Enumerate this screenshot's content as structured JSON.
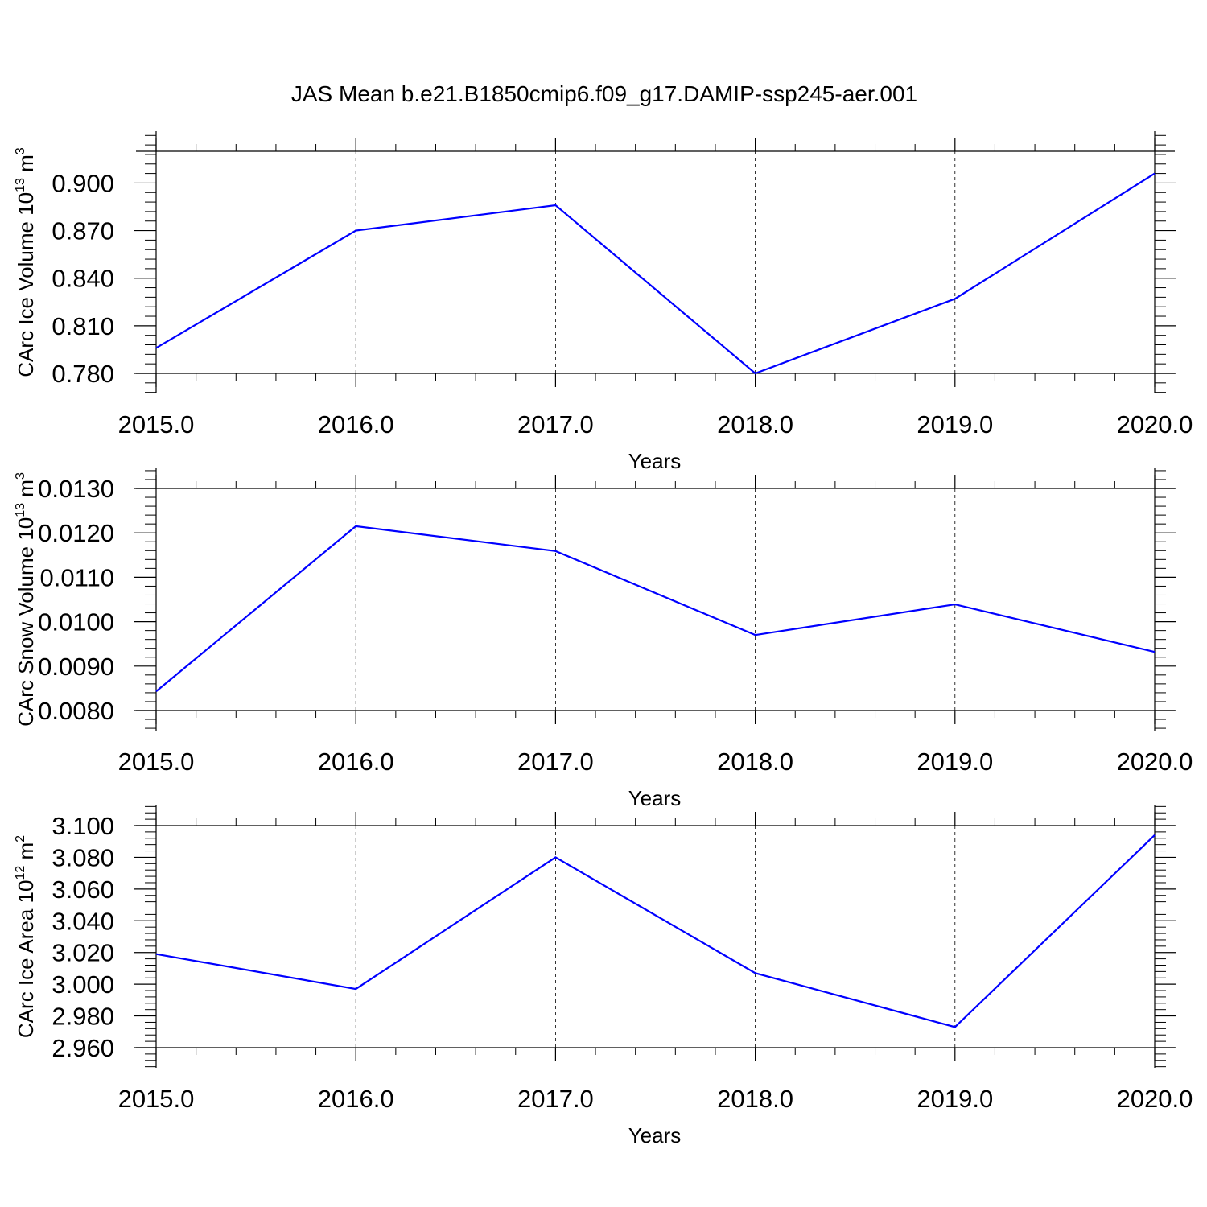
{
  "title": "JAS Mean b.e21.B1850cmip6.f09_g17.DAMIP-ssp245-aer.001",
  "colors": {
    "line": "#0000ff",
    "axes": "#000000",
    "grid": "#000000"
  },
  "chart_data": [
    {
      "type": "line",
      "xlabel": "Years",
      "ylabel": {
        "text": "CArc Ice Volume 10",
        "exponent": "13",
        "unit": " m",
        "unit_exponent": "3"
      },
      "x": [
        2015,
        2016,
        2017,
        2018,
        2019,
        2020
      ],
      "x_tick_labels": [
        "2015.0",
        "2016.0",
        "2017.0",
        "2018.0",
        "2019.0",
        "2020.0"
      ],
      "y": [
        0.796,
        0.87,
        0.886,
        0.78,
        0.827,
        0.906
      ],
      "ylim": [
        0.78,
        0.92
      ],
      "y_ticks": [
        0.78,
        0.81,
        0.84,
        0.87,
        0.9
      ],
      "y_tick_labels": [
        "0.780",
        "0.810",
        "0.840",
        "0.870",
        "0.900"
      ],
      "y_minor_step": 0.006,
      "grid": "vertical dashed at major x ticks"
    },
    {
      "type": "line",
      "xlabel": "Years",
      "ylabel": {
        "text": "CArc Snow Volume 10",
        "exponent": "13",
        "unit": " m",
        "unit_exponent": "3"
      },
      "x": [
        2015,
        2016,
        2017,
        2018,
        2019,
        2020
      ],
      "x_tick_labels": [
        "2015.0",
        "2016.0",
        "2017.0",
        "2018.0",
        "2019.0",
        "2020.0"
      ],
      "y": [
        0.00843,
        0.01215,
        0.01159,
        0.0097,
        0.01039,
        0.00932
      ],
      "ylim": [
        0.008,
        0.013
      ],
      "y_ticks": [
        0.008,
        0.009,
        0.01,
        0.011,
        0.012,
        0.013
      ],
      "y_tick_labels": [
        "0.0080",
        "0.0090",
        "0.0100",
        "0.0110",
        "0.0120",
        "0.0130"
      ],
      "y_minor_step": 0.0002,
      "grid": "vertical dashed at major x ticks"
    },
    {
      "type": "line",
      "xlabel": "Years",
      "ylabel": {
        "text": "CArc Ice Area 10",
        "exponent": "12",
        "unit": " m",
        "unit_exponent": "2"
      },
      "x": [
        2015,
        2016,
        2017,
        2018,
        2019,
        2020
      ],
      "x_tick_labels": [
        "2015.0",
        "2016.0",
        "2017.0",
        "2018.0",
        "2019.0",
        "2020.0"
      ],
      "y": [
        3.019,
        2.997,
        3.08,
        3.007,
        2.973,
        3.094
      ],
      "ylim": [
        2.96,
        3.1
      ],
      "y_ticks": [
        2.96,
        2.98,
        3.0,
        3.02,
        3.04,
        3.06,
        3.08,
        3.1
      ],
      "y_tick_labels": [
        "2.960",
        "2.980",
        "3.000",
        "3.020",
        "3.040",
        "3.060",
        "3.080",
        "3.100"
      ],
      "y_minor_step": 0.004,
      "grid": "vertical dashed at major x ticks"
    }
  ]
}
